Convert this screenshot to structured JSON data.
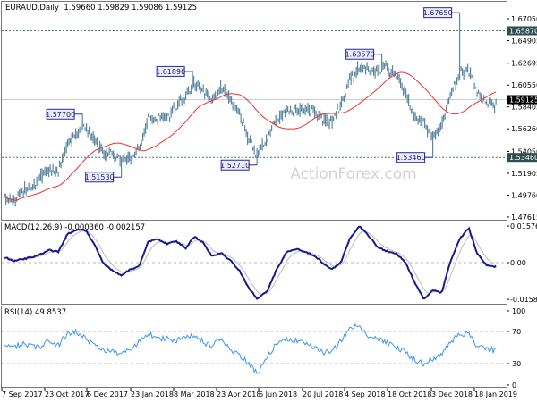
{
  "header": {
    "symbol": "EURAUD,Daily",
    "ohlc": "1.59660 1.59829 1.59086 1.59125"
  },
  "macd_header": {
    "label": "MACD(12,26,9)",
    "values": "-0.000360 -0.002157"
  },
  "rsi_header": {
    "label": "RSI(14)",
    "value": "49.8537"
  },
  "watermark": "ActionForex.com",
  "colors": {
    "bars": "#4f7d98",
    "ma": "#ee3333",
    "macd": "#1a1a8c",
    "signal": "#bbbbbb",
    "rsi": "#3c96f0",
    "label_border": "#2a2aa0",
    "label_bg": "#ececff",
    "level_tag": "#2f4f4f",
    "price_tag": "#000000"
  },
  "chart_data": [
    {
      "type": "candlestick",
      "title": "EURAUD,Daily",
      "price_ticks": [
        "1.67050",
        "1.64905",
        "1.62695",
        "1.60550",
        "1.58405",
        "1.56260",
        "1.54050",
        "1.51905",
        "1.49760",
        "1.47615"
      ],
      "ylim": [
        1.47615,
        1.6765
      ],
      "x_ticks": [
        {
          "label": "7 Sep 2017",
          "date": "2017-09-07"
        },
        {
          "label": "23 Oct 2017",
          "date": "2017-10-23"
        },
        {
          "label": "6 Dec 2017",
          "date": "2017-12-06"
        },
        {
          "label": "23 Jan 2018",
          "date": "2018-01-23"
        },
        {
          "label": "8 Mar 2018",
          "date": "2018-03-08"
        },
        {
          "label": "23 Apr 2018",
          "date": "2018-04-23"
        },
        {
          "label": "6 Jun 2018",
          "date": "2018-06-06"
        },
        {
          "label": "20 Jul 2018",
          "date": "2018-07-20"
        },
        {
          "label": "4 Sep 2018",
          "date": "2018-09-04"
        },
        {
          "label": "18 Oct 2018",
          "date": "2018-10-18"
        },
        {
          "label": "3 Dec 2018",
          "date": "2018-12-03"
        },
        {
          "label": "18 Jan 2019",
          "date": "2019-01-18"
        }
      ],
      "dates": [
        "2017-09-10",
        "2017-09-20",
        "2017-09-29",
        "2017-10-09",
        "2017-10-18",
        "2017-10-28",
        "2017-11-06",
        "2017-11-16",
        "2017-11-26",
        "2017-12-05",
        "2017-12-15",
        "2017-12-24",
        "2018-01-03",
        "2018-01-13",
        "2018-01-22",
        "2018-02-01",
        "2018-02-10",
        "2018-02-20",
        "2018-03-01",
        "2018-03-11",
        "2018-03-21",
        "2018-03-30",
        "2018-04-09",
        "2018-04-18",
        "2018-04-28",
        "2018-05-08",
        "2018-05-17",
        "2018-05-27",
        "2018-06-05",
        "2018-06-15",
        "2018-06-24",
        "2018-07-04",
        "2018-07-14",
        "2018-07-23",
        "2018-08-02",
        "2018-08-11",
        "2018-08-21",
        "2018-08-31",
        "2018-09-09",
        "2018-09-19",
        "2018-09-28",
        "2018-10-08",
        "2018-10-17",
        "2018-10-27",
        "2018-11-06",
        "2018-11-15",
        "2018-11-25",
        "2018-12-04",
        "2018-12-14",
        "2018-12-23",
        "2019-01-02",
        "2019-01-12",
        "2019-01-21",
        "2019-01-31",
        "2019-02-09",
        "2019-02-11"
      ],
      "close": [
        1.493,
        1.491,
        1.502,
        1.506,
        1.515,
        1.522,
        1.521,
        1.55,
        1.558,
        1.565,
        1.55,
        1.538,
        1.538,
        1.532,
        1.534,
        1.541,
        1.573,
        1.573,
        1.573,
        1.584,
        1.596,
        1.608,
        1.599,
        1.591,
        1.605,
        1.591,
        1.578,
        1.55,
        1.538,
        1.555,
        1.572,
        1.58,
        1.582,
        1.582,
        1.58,
        1.572,
        1.568,
        1.586,
        1.61,
        1.623,
        1.62,
        1.619,
        1.622,
        1.615,
        1.598,
        1.575,
        1.568,
        1.552,
        1.567,
        1.595,
        1.616,
        1.62,
        1.596,
        1.59,
        1.585,
        1.59125
      ],
      "annotations": [
        {
          "label": "1.57700",
          "value": 1.577,
          "date": "2017-12-01",
          "kind": "high"
        },
        {
          "label": "1.51530",
          "value": 1.5153,
          "date": "2018-01-13",
          "kind": "low"
        },
        {
          "label": "1.61890",
          "value": 1.6189,
          "date": "2018-03-28",
          "kind": "high"
        },
        {
          "label": "1.52710",
          "value": 1.5271,
          "date": "2018-06-04",
          "kind": "low"
        },
        {
          "label": "1.63570",
          "value": 1.6357,
          "date": "2018-10-12",
          "kind": "high"
        },
        {
          "label": "1.53460",
          "value": 1.5346,
          "date": "2018-12-04",
          "kind": "low"
        },
        {
          "label": "1.67650",
          "value": 1.6765,
          "date": "2019-01-03",
          "kind": "high"
        }
      ],
      "levels": [
        {
          "label": "1.65870",
          "value": 1.6587,
          "style": "dashed"
        },
        {
          "label": "1.53460",
          "value": 1.5346,
          "style": "dashed"
        }
      ],
      "current_price": {
        "label": "1.59125",
        "value": 1.59125
      },
      "moving_average": "red line"
    },
    {
      "type": "line",
      "title": "MACD(12,26,9)",
      "y_ticks": [
        "0.015762",
        "0.00",
        "-0.015834"
      ],
      "ylim": [
        -0.015834,
        0.015762
      ],
      "macd": [
        0.0023,
        0.0008,
        0.0015,
        0.0023,
        0.0035,
        0.0054,
        0.0046,
        0.0123,
        0.0143,
        0.0139,
        0.0073,
        -0.0004,
        -0.0035,
        -0.0054,
        -0.0031,
        -0.0012,
        0.0092,
        0.01,
        0.0081,
        0.0092,
        0.0062,
        0.0112,
        0.0085,
        0.0027,
        0.0042,
        0.0008,
        -0.0035,
        -0.0112,
        -0.0158,
        -0.012,
        -0.003,
        0.0045,
        0.006,
        0.0045,
        0.003,
        0.0,
        -0.003,
        0.0,
        0.01,
        0.0158,
        0.012,
        0.0065,
        0.005,
        0.004,
        0.0,
        -0.008,
        -0.0158,
        -0.0118,
        -0.013,
        0.0,
        0.01,
        0.015,
        0.004,
        -0.001,
        -0.002,
        -0.00036
      ],
      "signal_last": -0.002157
    },
    {
      "type": "line",
      "title": "RSI(14)",
      "y_ticks": [
        "100",
        "70",
        "30",
        "0"
      ],
      "ylim": [
        0,
        100
      ],
      "rsi": [
        52,
        51,
        54,
        52,
        51,
        60,
        52,
        68,
        69,
        62,
        51,
        46,
        46,
        41,
        47,
        57,
        68,
        60,
        62,
        59,
        64,
        66,
        57,
        51,
        62,
        47,
        41,
        29,
        19,
        38,
        56,
        61,
        59,
        55,
        50,
        44,
        45,
        58,
        73,
        78,
        64,
        60,
        57,
        50,
        44,
        35,
        30,
        36,
        40,
        58,
        65,
        68,
        50,
        48,
        47,
        49.85
      ]
    }
  ]
}
